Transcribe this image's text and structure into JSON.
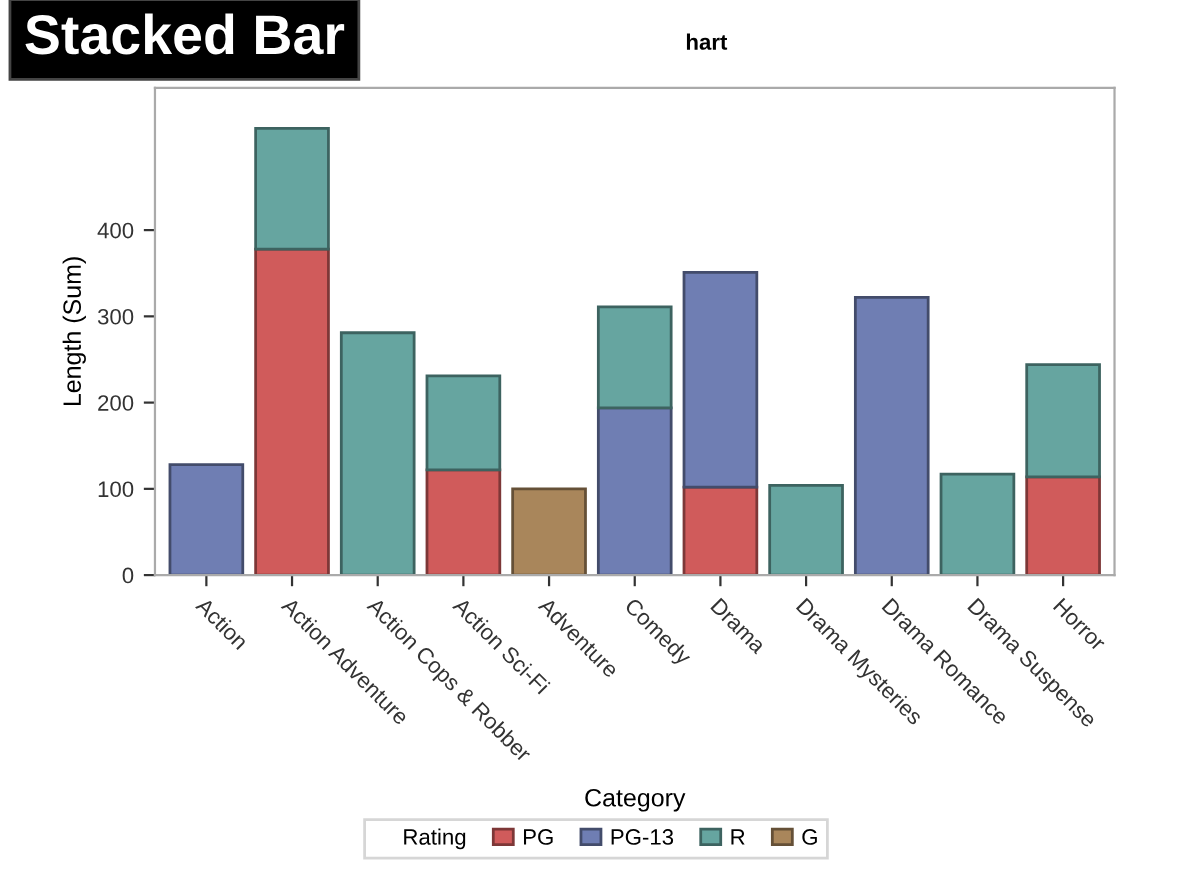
{
  "chart_data": {
    "type": "bar",
    "title": "Stacked Bar",
    "annotations": [
      "hart"
    ],
    "xlabel": "Category",
    "ylabel": "Length (Sum)",
    "legend_title": "Rating",
    "stacked": true,
    "legend": "bottom",
    "grid": false,
    "categories": [
      "Action",
      "Action Adventure",
      "Action Cops & Robber",
      "Action Sci-Fi",
      "Adventure",
      "Comedy",
      "Drama",
      "Drama Mysteries",
      "Drama Romance",
      "Drama Suspense",
      "Horror"
    ],
    "ylim": [
      0,
      565
    ],
    "yticks": [
      0,
      100,
      200,
      300,
      400
    ],
    "series": [
      {
        "name": "PG",
        "color": "#d05b5b",
        "values": [
          0,
          378,
          0,
          122,
          0,
          0,
          102,
          0,
          0,
          0,
          114
        ]
      },
      {
        "name": "PG-13",
        "color": "#6f7eb3",
        "values": [
          128,
          0,
          0,
          0,
          0,
          194,
          249,
          0,
          322,
          0,
          0
        ]
      },
      {
        "name": "R",
        "color": "#66a5a0",
        "values": [
          0,
          140,
          281,
          109,
          0,
          117,
          0,
          104,
          0,
          117,
          130
        ]
      },
      {
        "name": "G",
        "color": "#a9865b",
        "values": [
          0,
          0,
          0,
          0,
          100,
          0,
          0,
          0,
          0,
          0,
          0
        ]
      }
    ]
  }
}
